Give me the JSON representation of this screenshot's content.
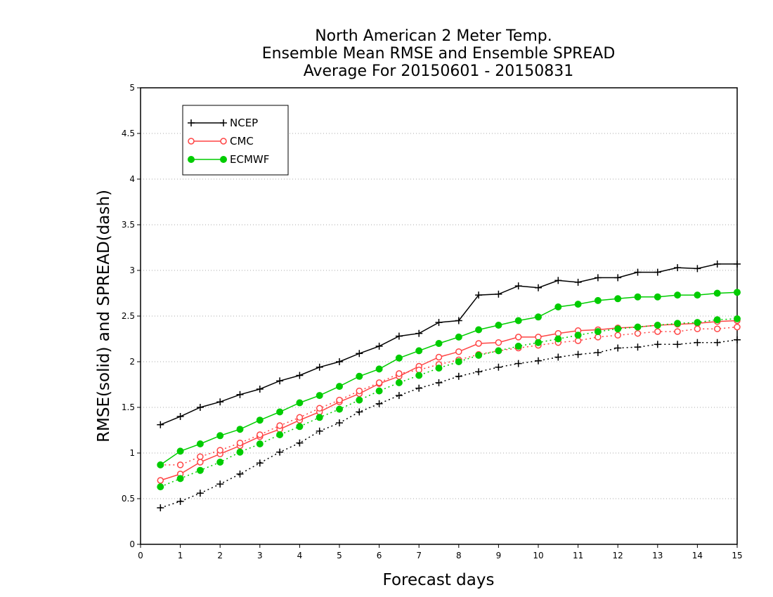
{
  "chart_data": {
    "type": "line",
    "title": [
      "North American 2 Meter Temp.",
      "Ensemble Mean RMSE and Ensemble SPREAD",
      "Average For 20150601 - 20150831"
    ],
    "xlabel": "Forecast days",
    "ylabel": "RMSE(solid) and SPREAD(dash)",
    "xlim": [
      0,
      15
    ],
    "ylim": [
      0,
      5
    ],
    "xticks": [
      "0",
      "1",
      "2",
      "3",
      "4",
      "5",
      "6",
      "7",
      "8",
      "9",
      "10",
      "11",
      "12",
      "13",
      "14",
      "15"
    ],
    "yticks": [
      "0",
      "0.5",
      "1",
      "1.5",
      "2",
      "2.5",
      "3",
      "3.5",
      "4",
      "4.5",
      "5"
    ],
    "grid": "horizontal dotted",
    "legend_position": "top-left",
    "x": [
      0.5,
      1,
      1.5,
      2,
      2.5,
      3,
      3.5,
      4,
      4.5,
      5,
      5.5,
      6,
      6.5,
      7,
      7.5,
      8,
      8.5,
      9,
      9.5,
      10,
      10.5,
      11,
      11.5,
      12,
      12.5,
      13,
      13.5,
      14,
      14.5,
      15
    ],
    "series": [
      {
        "name": "NCEP",
        "color": "#000000",
        "marker": "plus",
        "rmse": [
          1.31,
          1.4,
          1.5,
          1.56,
          1.64,
          1.7,
          1.79,
          1.85,
          1.94,
          2.0,
          2.09,
          2.17,
          2.28,
          2.31,
          2.43,
          2.45,
          2.73,
          2.74,
          2.83,
          2.81,
          2.89,
          2.87,
          2.92,
          2.92,
          2.98,
          2.98,
          3.03,
          3.02,
          3.07,
          3.07
        ],
        "spread": [
          0.4,
          0.47,
          0.56,
          0.66,
          0.77,
          0.89,
          1.01,
          1.11,
          1.24,
          1.33,
          1.45,
          1.54,
          1.63,
          1.71,
          1.77,
          1.84,
          1.89,
          1.94,
          1.98,
          2.01,
          2.05,
          2.08,
          2.1,
          2.15,
          2.16,
          2.19,
          2.19,
          2.21,
          2.21,
          2.24
        ]
      },
      {
        "name": "CMC",
        "color": "#ff4444",
        "marker": "open-circle",
        "rmse": [
          0.7,
          0.77,
          0.9,
          0.99,
          1.08,
          1.18,
          1.26,
          1.36,
          1.45,
          1.56,
          1.65,
          1.76,
          1.84,
          1.95,
          2.05,
          2.11,
          2.2,
          2.21,
          2.27,
          2.27,
          2.31,
          2.34,
          2.35,
          2.37,
          2.38,
          2.4,
          2.41,
          2.42,
          2.44,
          2.45
        ],
        "spread": [
          0.87,
          0.87,
          0.96,
          1.03,
          1.11,
          1.2,
          1.3,
          1.39,
          1.49,
          1.58,
          1.68,
          1.77,
          1.87,
          1.91,
          1.97,
          2.02,
          2.08,
          2.12,
          2.15,
          2.18,
          2.21,
          2.23,
          2.27,
          2.29,
          2.31,
          2.33,
          2.33,
          2.36,
          2.36,
          2.38
        ]
      },
      {
        "name": "ECMWF",
        "color": "#00cc00",
        "marker": "filled-circle",
        "rmse": [
          0.87,
          1.02,
          1.1,
          1.19,
          1.26,
          1.36,
          1.45,
          1.55,
          1.63,
          1.73,
          1.84,
          1.92,
          2.04,
          2.12,
          2.2,
          2.27,
          2.35,
          2.4,
          2.45,
          2.49,
          2.6,
          2.63,
          2.67,
          2.69,
          2.71,
          2.71,
          2.73,
          2.73,
          2.75,
          2.76
        ],
        "spread": [
          0.63,
          0.72,
          0.81,
          0.9,
          1.01,
          1.1,
          1.2,
          1.29,
          1.39,
          1.48,
          1.58,
          1.68,
          1.77,
          1.85,
          1.93,
          2.0,
          2.07,
          2.12,
          2.17,
          2.21,
          2.25,
          2.29,
          2.33,
          2.36,
          2.38,
          2.4,
          2.42,
          2.43,
          2.46,
          2.47
        ]
      }
    ]
  }
}
